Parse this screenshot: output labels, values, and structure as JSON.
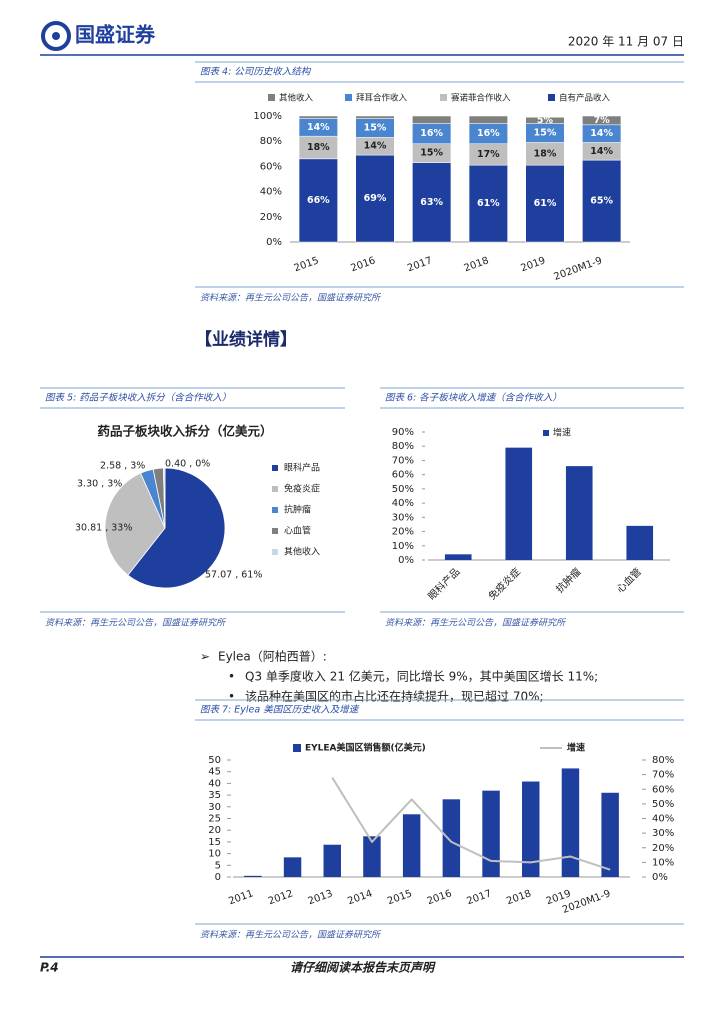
{
  "header": {
    "logo": "国盛证券",
    "date": "2020 年 11 月 07 日"
  },
  "section_heading": "【业绩详情】",
  "bullets": {
    "head": "Eylea（阿柏西普）:",
    "items": [
      "Q3 单季度收入 21 亿美元，同比增长 9%，其中美国区增长 11%;",
      "该品种在美国区的市占比还在持续提升，现已超过 70%;"
    ]
  },
  "footer": {
    "page": "P.4",
    "notice": "请仔细阅读本报告末页声明"
  },
  "chart_data": [
    {
      "type": "stacked_bar",
      "caption": "图表 4: 公司历史收入结构",
      "source": "资料来源：再生元公司公告，国盛证券研究所",
      "categories": [
        "2015",
        "2016",
        "2017",
        "2018",
        "2019",
        "2020M1-9"
      ],
      "series": [
        {
          "name": "其他收入",
          "color": "#7f7f7f",
          "values": [
            2,
            2,
            6,
            6,
            5,
            7
          ],
          "value_labels": [
            null,
            null,
            null,
            null,
            "5%",
            "7%"
          ]
        },
        {
          "name": "拜耳合作收入",
          "color": "#4a86d0",
          "values": [
            14,
            15,
            16,
            16,
            15,
            14
          ],
          "value_labels": [
            "14%",
            "15%",
            "16%",
            "16%",
            "15%",
            "14%"
          ]
        },
        {
          "name": "赛诺菲合作收入",
          "color": "#bfbfbf",
          "values": [
            18,
            14,
            15,
            17,
            18,
            14
          ],
          "value_labels": [
            "18%",
            "14%",
            "15%",
            "17%",
            "18%",
            "14%"
          ]
        },
        {
          "name": "自有产品收入",
          "color": "#1f3f9e",
          "values": [
            66,
            69,
            63,
            61,
            61,
            65
          ],
          "value_labels": [
            "66%",
            "69%",
            "63%",
            "61%",
            "61%",
            "65%"
          ]
        }
      ],
      "ylim": [
        0,
        100
      ],
      "yticks": [
        {
          "value": 0,
          "label": "0%"
        },
        {
          "value": 20,
          "label": "20%"
        },
        {
          "value": 40,
          "label": "40%"
        },
        {
          "value": 60,
          "label": "60%"
        },
        {
          "value": 80,
          "label": "80%"
        },
        {
          "value": 100,
          "label": "100%"
        }
      ]
    },
    {
      "type": "pie",
      "caption": "图表 5: 药品子板块收入拆分（含合作收入）",
      "title": "药品子板块收入拆分（亿美元）",
      "source": "资料来源：再生元公司公告，国盛证券研究所",
      "categories": [
        "眼科产品",
        "免疫炎症",
        "抗肿瘤",
        "心血管",
        "其他收入"
      ],
      "values": [
        57.07,
        30.81,
        3.3,
        2.58,
        0.4
      ],
      "value_labels": [
        "57.07 , 61%",
        "30.81 , 33%",
        "3.30 , 3%",
        "2.58 , 3%",
        "0.40 , 0%"
      ],
      "colors": [
        "#1f3f9e",
        "#bfbfbf",
        "#4a86d0",
        "#7f7f7f",
        "#c9d6ea"
      ]
    },
    {
      "type": "bar",
      "caption": "图表 6: 各子板块收入增速（含合作收入）",
      "source": "资料来源：再生元公司公告，国盛证券研究所",
      "legend": "增速",
      "color": "#1f3f9e",
      "categories": [
        "眼科产品",
        "免疫炎症",
        "抗肿瘤",
        "心血管"
      ],
      "values": [
        4,
        79,
        66,
        24
      ],
      "ylim": [
        0,
        90
      ],
      "yticks": [
        {
          "value": 0,
          "label": "0%"
        },
        {
          "value": 10,
          "label": "10%"
        },
        {
          "value": 20,
          "label": "20%"
        },
        {
          "value": 30,
          "label": "30%"
        },
        {
          "value": 40,
          "label": "40%"
        },
        {
          "value": 50,
          "label": "50%"
        },
        {
          "value": 60,
          "label": "60%"
        },
        {
          "value": 70,
          "label": "70%"
        },
        {
          "value": 80,
          "label": "80%"
        },
        {
          "value": 90,
          "label": "90%"
        }
      ]
    },
    {
      "type": "bar_line",
      "caption": "图表 7: Eylea 美国区历史收入及增速",
      "source": "资料来源：再生元公司公告，国盛证券研究所",
      "categories": [
        "2011",
        "2012",
        "2013",
        "2014",
        "2015",
        "2016",
        "2017",
        "2018",
        "2019",
        "2020M1-9"
      ],
      "series": [
        {
          "name": "EYLEA美国区销售额(亿美元)",
          "color": "#1f3f9e",
          "values": [
            0.5,
            8.4,
            13.8,
            17.4,
            26.8,
            33.2,
            36.9,
            40.8,
            46.4,
            36.0
          ]
        },
        {
          "name": "增速",
          "color": "#bfbfbf",
          "axis": "y2",
          "values": [
            null,
            null,
            68,
            24,
            53,
            24,
            11,
            10,
            14,
            5
          ]
        }
      ],
      "ylim": [
        0,
        50
      ],
      "yticks": [
        0,
        5,
        10,
        15,
        20,
        25,
        30,
        35,
        40,
        45,
        50
      ],
      "y2lim": [
        0,
        80
      ],
      "y2ticks": [
        {
          "value": 0,
          "label": "0%"
        },
        {
          "value": 10,
          "label": "10%"
        },
        {
          "value": 20,
          "label": "20%"
        },
        {
          "value": 30,
          "label": "30%"
        },
        {
          "value": 40,
          "label": "40%"
        },
        {
          "value": 50,
          "label": "50%"
        },
        {
          "value": 60,
          "label": "60%"
        },
        {
          "value": 70,
          "label": "70%"
        },
        {
          "value": 80,
          "label": "80%"
        }
      ]
    }
  ]
}
